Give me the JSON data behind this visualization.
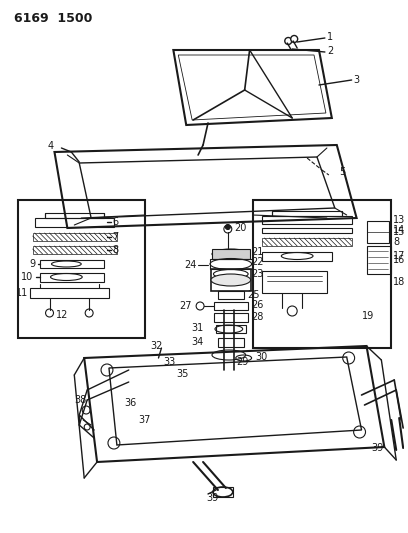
{
  "title": "6169  1500",
  "bg_color": "#ffffff",
  "line_color": "#1a1a1a",
  "title_fontsize": 9,
  "label_fontsize": 7
}
